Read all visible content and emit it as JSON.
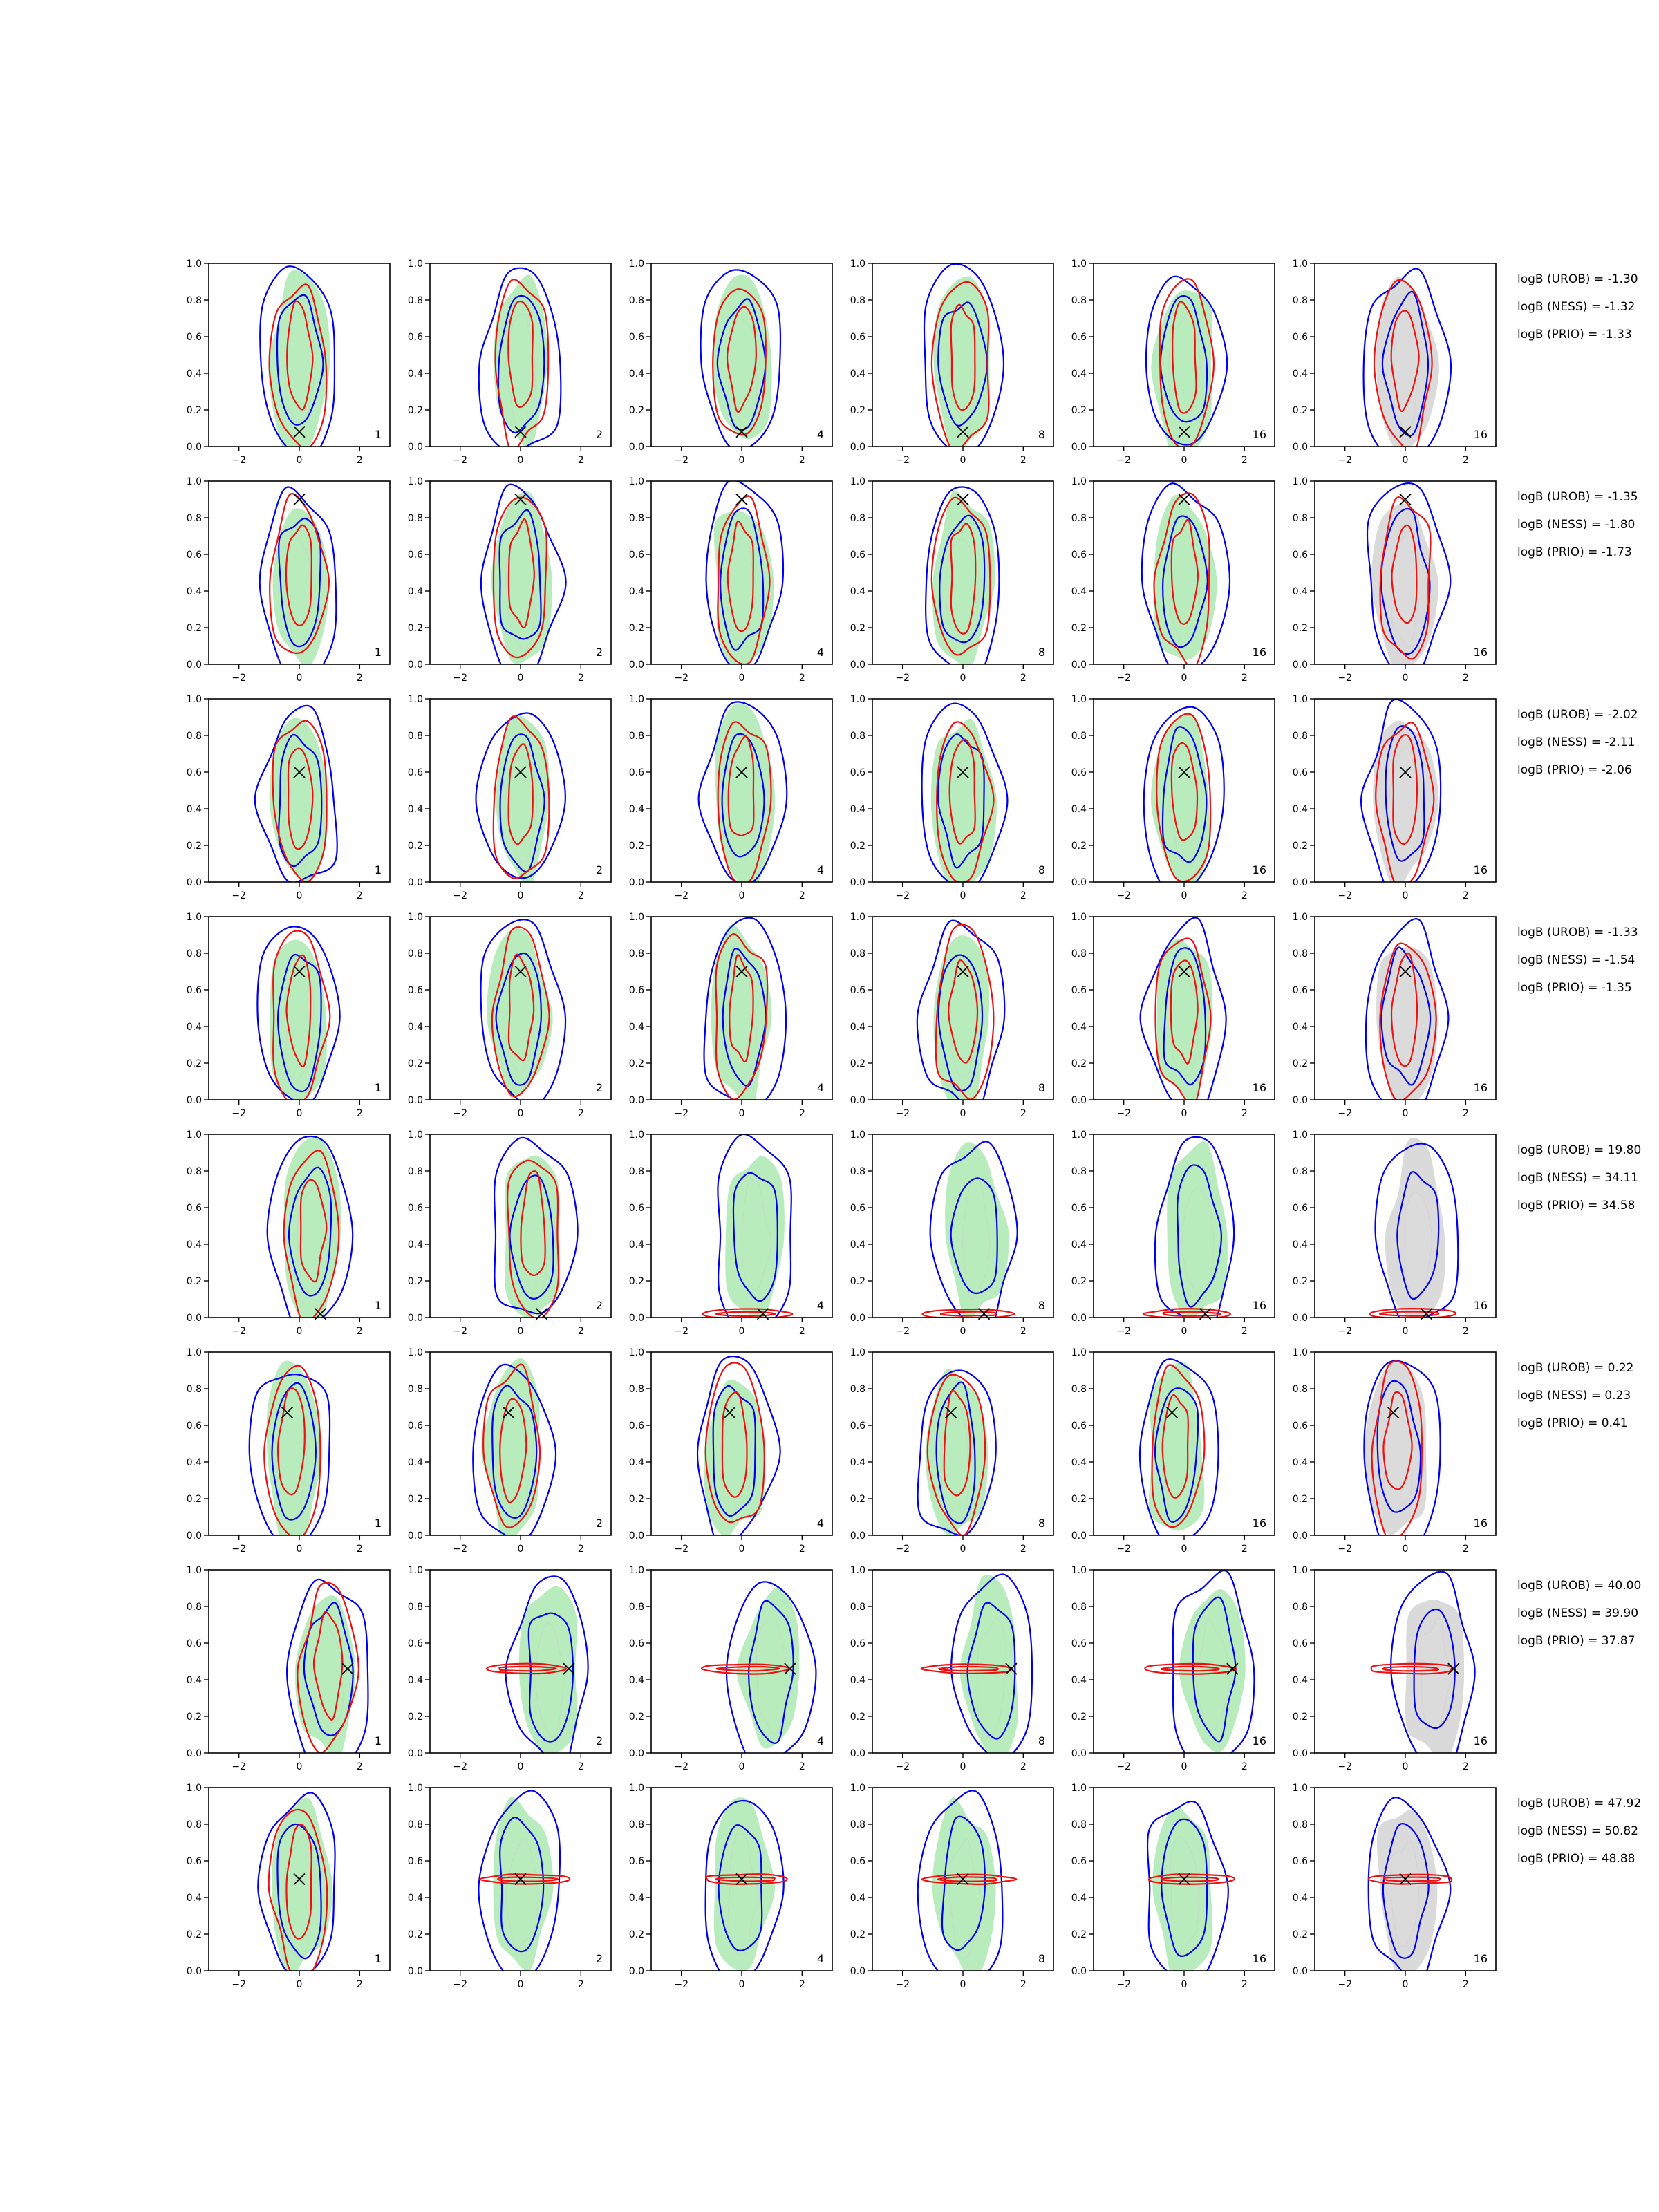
{
  "colors": {
    "green_fill": "#b8ecbc",
    "gray_fill": "#dadada",
    "blue_contour": "#0000ee",
    "red_contour": "#ee1111",
    "true_marker": "#000000"
  },
  "chart_data": {
    "type": "contour grid",
    "rows": 8,
    "cols": 6,
    "xlim": [
      -3,
      3
    ],
    "ylim": [
      0,
      1
    ],
    "x_ticks": [
      "−2",
      "0",
      "2"
    ],
    "y_ticks": [
      "0.0",
      "0.2",
      "0.4",
      "0.6",
      "0.8",
      "1.0"
    ],
    "column_labels": [
      "1",
      "2",
      "4",
      "8",
      "16",
      "16"
    ],
    "filled_style_by_column": [
      "green",
      "green",
      "green",
      "green",
      "green",
      "gray"
    ],
    "true_points": [
      {
        "x": 0.0,
        "y": 0.08
      },
      {
        "x": 0.0,
        "y": 0.9
      },
      {
        "x": 0.0,
        "y": 0.6
      },
      {
        "x": 0.0,
        "y": 0.7
      },
      {
        "x": 0.7,
        "y": 0.02
      },
      {
        "x": -0.4,
        "y": 0.67
      },
      {
        "x": 1.6,
        "y": 0.46
      },
      {
        "x": 0.0,
        "y": 0.5
      }
    ],
    "log_bayes_factors": [
      [
        "logB (UROB) = -1.30",
        "logB (NESS) = -1.32",
        "logB (PRIO) = -1.33"
      ],
      [
        "logB (UROB) = -1.35",
        "logB (NESS) = -1.80",
        "logB (PRIO) = -1.73"
      ],
      [
        "logB (UROB) = -2.02",
        "logB (NESS) = -2.11",
        "logB (PRIO) = -2.06"
      ],
      [
        "logB (UROB) = -1.33",
        "logB (NESS) = -1.54",
        "logB (PRIO) = -1.35"
      ],
      [
        "logB (UROB) = 19.80",
        "logB (NESS) = 34.11",
        "logB (PRIO) = 34.58"
      ],
      [
        "logB (UROB) = 0.22",
        "logB (NESS) = 0.23",
        "logB (PRIO) = 0.41"
      ],
      [
        "logB (UROB) = 40.00",
        "logB (NESS) = 39.90",
        "logB (PRIO) = 37.87"
      ],
      [
        "logB (UROB) = 47.92",
        "logB (NESS) = 50.82",
        "logB (PRIO) = 48.88"
      ]
    ]
  }
}
